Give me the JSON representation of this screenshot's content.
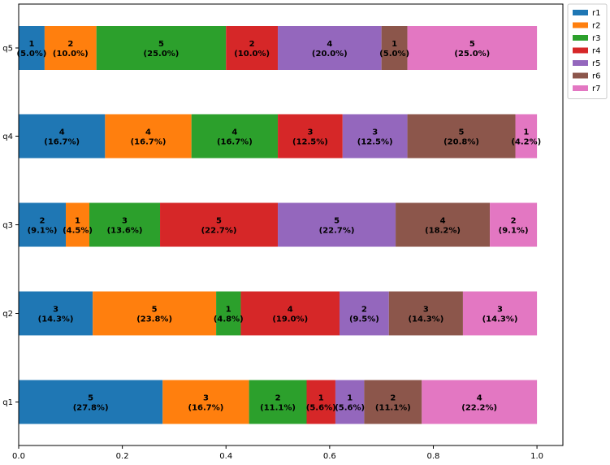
{
  "chart_data": {
    "type": "bar",
    "orientation": "horizontal",
    "stacked": true,
    "normalized": true,
    "categories": [
      "q1",
      "q2",
      "q3",
      "q4",
      "q5"
    ],
    "series": [
      {
        "name": "r1",
        "color": "#1f77b4",
        "counts": [
          5,
          3,
          2,
          4,
          1
        ],
        "labels": [
          "5\n(27.8%)",
          "3\n(14.3%)",
          "2\n(9.1%)",
          "4\n(16.7%)",
          "1\n(5.0%)"
        ]
      },
      {
        "name": "r2",
        "color": "#ff7f0e",
        "counts": [
          3,
          5,
          1,
          4,
          2
        ],
        "labels": [
          "3\n(16.7%)",
          "5\n(23.8%)",
          "1\n(4.5%)",
          "4\n(16.7%)",
          "2\n(10.0%)"
        ]
      },
      {
        "name": "r3",
        "color": "#2ca02c",
        "counts": [
          2,
          1,
          3,
          4,
          5
        ],
        "labels": [
          "2\n(11.1%)",
          "1\n(4.8%)",
          "3\n(13.6%)",
          "4\n(16.7%)",
          "5\n(25.0%)"
        ]
      },
      {
        "name": "r4",
        "color": "#d62728",
        "counts": [
          1,
          4,
          5,
          3,
          2
        ],
        "labels": [
          "1\n(5.6%)",
          "4\n(19.0%)",
          "5\n(22.7%)",
          "3\n(12.5%)",
          "2\n(10.0%)"
        ]
      },
      {
        "name": "r5",
        "color": "#9467bd",
        "counts": [
          1,
          2,
          5,
          3,
          4
        ],
        "labels": [
          "1\n(5.6%)",
          "2\n(9.5%)",
          "5\n(22.7%)",
          "3\n(12.5%)",
          "4\n(20.0%)"
        ]
      },
      {
        "name": "r6",
        "color": "#8c564b",
        "counts": [
          2,
          3,
          4,
          5,
          1
        ],
        "labels": [
          "2\n(11.1%)",
          "3\n(14.3%)",
          "4\n(18.2%)",
          "5\n(20.8%)",
          "1\n(5.0%)"
        ]
      },
      {
        "name": "r7",
        "color": "#e377c2",
        "counts": [
          4,
          3,
          2,
          1,
          5
        ],
        "labels": [
          "4\n(22.2%)",
          "3\n(14.3%)",
          "2\n(9.1%)",
          "1\n(4.2%)",
          "5\n(25.0%)"
        ]
      }
    ],
    "xlim": [
      0.0,
      1.05
    ],
    "xticks": [
      0.0,
      0.2,
      0.4,
      0.6,
      0.8,
      1.0
    ],
    "xtick_labels": [
      "0.0",
      "0.2",
      "0.4",
      "0.6",
      "0.8",
      "1.0"
    ],
    "title": "",
    "xlabel": "",
    "ylabel": "",
    "grid": false,
    "legend_position": "outside-top-right"
  }
}
